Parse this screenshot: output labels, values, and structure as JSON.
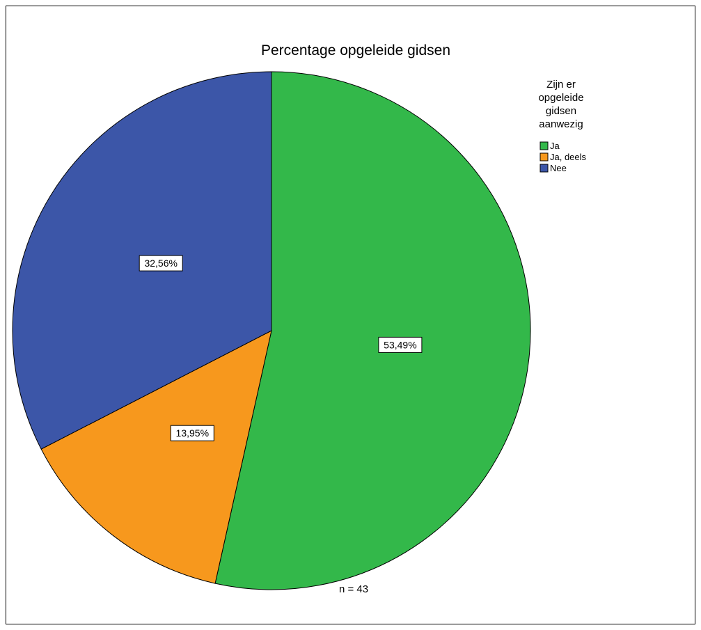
{
  "chart_data": {
    "type": "pie",
    "title": "Percentage opgeleide gidsen",
    "legend_title": [
      "Zijn er",
      "opgeleide",
      "gidsen",
      "aanwezig"
    ],
    "legend_position": "top-right",
    "slices": [
      {
        "label": "Ja",
        "value": 53.49,
        "display": "53,49%",
        "color": "#33b84a"
      },
      {
        "label": "Ja, deels",
        "value": 13.95,
        "display": "13,95%",
        "color": "#f7981d"
      },
      {
        "label": "Nee",
        "value": 32.56,
        "display": "32,56%",
        "color": "#3c56a8"
      }
    ],
    "footnote": "n = 43"
  }
}
